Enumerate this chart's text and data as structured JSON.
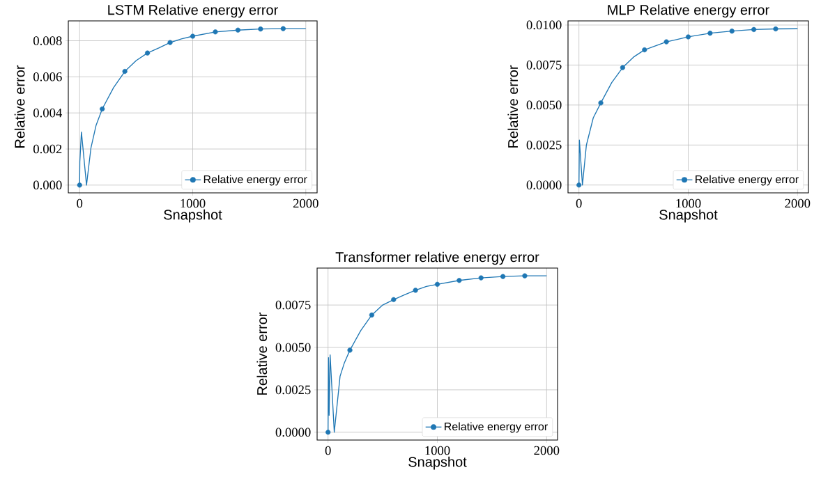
{
  "chart_data": [
    {
      "type": "line",
      "title": "LSTM Relative energy error",
      "xlabel": "Snapshot",
      "ylabel": "Relative error",
      "xlim": [
        -100,
        2100
      ],
      "ylim": [
        -0.00043,
        0.0091
      ],
      "xticks": [
        0,
        1000,
        2000
      ],
      "yticks": [
        {
          "value": 0,
          "label": "0.000"
        },
        {
          "value": 0.002,
          "label": "0.002"
        },
        {
          "value": 0.004,
          "label": "0.004"
        },
        {
          "value": 0.006,
          "label": "0.006"
        },
        {
          "value": 0.008,
          "label": "0.008"
        }
      ],
      "grid": true,
      "legend": "bottom right",
      "series": [
        {
          "color": "#1f77b4",
          "marker": "none",
          "x": [
            0,
            2,
            16,
            61,
            100,
            145,
            200,
            300,
            400,
            500,
            600,
            700,
            800,
            900,
            1000,
            1200,
            1400,
            1600,
            1800,
            2000
          ],
          "values": [
            0,
            0.0013,
            0.00294,
            0,
            0.00205,
            0.0033,
            0.00422,
            0.0054,
            0.0063,
            0.0069,
            0.00732,
            0.0076,
            0.0079,
            0.0081,
            0.00825,
            0.00849,
            0.00859,
            0.00865,
            0.00867,
            0.00867
          ]
        },
        {
          "type": "scatter",
          "name": "Relative energy error",
          "color": "#1f77b4",
          "marker": "circle",
          "x": [
            0,
            200,
            400,
            600,
            800,
            1000,
            1200,
            1400,
            1600,
            1800
          ],
          "values": [
            0,
            0.00422,
            0.0063,
            0.00732,
            0.0079,
            0.00825,
            0.00849,
            0.00859,
            0.00865,
            0.00867
          ]
        }
      ]
    },
    {
      "type": "line",
      "title": "MLP Relative energy error",
      "xlabel": "Snapshot",
      "ylabel": "Relative error",
      "xlim": [
        -100,
        2100
      ],
      "ylim": [
        -0.00049,
        0.01026
      ],
      "xticks": [
        0,
        1000,
        2000
      ],
      "yticks": [
        {
          "value": 0,
          "label": "0.0000"
        },
        {
          "value": 0.0025,
          "label": "0.0025"
        },
        {
          "value": 0.005,
          "label": "0.0050"
        },
        {
          "value": 0.0075,
          "label": "0.0075"
        },
        {
          "value": 0.01,
          "label": "0.0100"
        }
      ],
      "grid": true,
      "legend": "bottom right",
      "series": [
        {
          "color": "#1f77b4",
          "marker": "none",
          "x": [
            0,
            4,
            32,
            68,
            131,
            200,
            300,
            400,
            500,
            600,
            700,
            800,
            900,
            1000,
            1200,
            1400,
            1600,
            1800,
            2000
          ],
          "values": [
            0,
            0.00281,
            0,
            0.00249,
            0.0042,
            0.00513,
            0.0064,
            0.00734,
            0.008,
            0.00845,
            0.0087,
            0.00895,
            0.0091,
            0.00926,
            0.00949,
            0.00962,
            0.00972,
            0.00976,
            0.00977
          ]
        },
        {
          "type": "scatter",
          "name": "Relative energy error",
          "color": "#1f77b4",
          "marker": "circle",
          "x": [
            0,
            200,
            400,
            600,
            800,
            1000,
            1200,
            1400,
            1600,
            1800
          ],
          "values": [
            0,
            0.00513,
            0.00734,
            0.00845,
            0.00895,
            0.00926,
            0.00949,
            0.00962,
            0.00972,
            0.00976
          ]
        }
      ]
    },
    {
      "type": "line",
      "title": "Transformer relative energy error",
      "xlabel": "Snapshot",
      "ylabel": "Relative error",
      "xlim": [
        -100,
        2100
      ],
      "ylim": [
        -0.00046,
        0.00968
      ],
      "xticks": [
        0,
        1000,
        2000
      ],
      "yticks": [
        {
          "value": 0,
          "label": "0.0000"
        },
        {
          "value": 0.0025,
          "label": "0.0025"
        },
        {
          "value": 0.005,
          "label": "0.0050"
        },
        {
          "value": 0.0075,
          "label": "0.0075"
        }
      ],
      "grid": true,
      "legend": "bottom right",
      "series": [
        {
          "color": "#1f77b4",
          "marker": "none",
          "x": [
            0,
            4,
            10,
            19,
            57,
            110,
            150,
            200,
            300,
            400,
            500,
            600,
            700,
            800,
            900,
            1000,
            1200,
            1400,
            1600,
            1800,
            2000
          ],
          "values": [
            0,
            0.0044,
            0.001,
            0.00456,
            0,
            0.0033,
            0.0041,
            0.00484,
            0.006,
            0.00691,
            0.0075,
            0.00782,
            0.0081,
            0.00837,
            0.0086,
            0.00872,
            0.00895,
            0.0091,
            0.00918,
            0.00922,
            0.00922
          ]
        },
        {
          "type": "scatter",
          "name": "Relative energy error",
          "color": "#1f77b4",
          "marker": "circle",
          "x": [
            0,
            200,
            400,
            600,
            800,
            1000,
            1200,
            1400,
            1600,
            1800
          ],
          "values": [
            0,
            0.00484,
            0.00691,
            0.00782,
            0.00837,
            0.00872,
            0.00895,
            0.0091,
            0.00918,
            0.00922
          ]
        }
      ]
    }
  ]
}
